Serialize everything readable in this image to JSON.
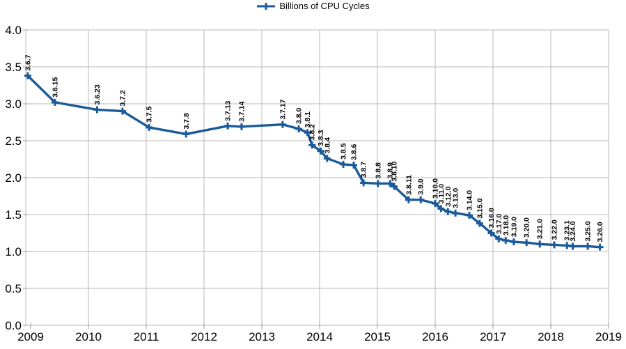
{
  "legend": {
    "label": "Billions of CPU Cycles"
  },
  "colors": {
    "series": "#1a5a9a",
    "grid": "#b9b9b9",
    "border": "#b9b9b9",
    "tick": "#9a9a9a",
    "text": "#000000"
  },
  "chart_data": {
    "type": "line",
    "legend_label": "Billions of CPU Cycles",
    "legend_position": "top-center",
    "grid": "both",
    "marker": "plus",
    "xlabel": "",
    "ylabel": "",
    "x_axis": {
      "ticks": [
        2009,
        2010,
        2011,
        2012,
        2013,
        2014,
        2015,
        2016,
        2017,
        2018,
        2019
      ]
    },
    "y_axis": {
      "min": 0,
      "max": 4,
      "ticks": [
        {
          "v": 0.0,
          "label": "0.0"
        },
        {
          "v": 0.5,
          "label": "0.5"
        },
        {
          "v": 1.0,
          "label": "1.0"
        },
        {
          "v": 1.5,
          "label": "1.5"
        },
        {
          "v": 2.0,
          "label": "2.0"
        },
        {
          "v": 2.5,
          "label": "2.5"
        },
        {
          "v": 3.0,
          "label": "3.0"
        },
        {
          "v": 3.5,
          "label": "3.5"
        },
        {
          "v": 4.0,
          "label": "4.0"
        }
      ]
    },
    "series": [
      {
        "name": "Billions of CPU Cycles",
        "color": "#1a5a9a",
        "points": [
          {
            "label": "3.6.7",
            "x": 2008.95,
            "y": 3.38
          },
          {
            "label": "3.6.15",
            "x": 2009.42,
            "y": 3.02
          },
          {
            "label": "3.6.23",
            "x": 2010.15,
            "y": 2.92
          },
          {
            "label": "3.7.2",
            "x": 2010.59,
            "y": 2.9
          },
          {
            "label": "3.7.5",
            "x": 2011.05,
            "y": 2.68
          },
          {
            "label": "3.7.8",
            "x": 2011.69,
            "y": 2.59
          },
          {
            "label": "3.7.13",
            "x": 2012.41,
            "y": 2.7
          },
          {
            "label": "3.7.14",
            "x": 2012.65,
            "y": 2.69
          },
          {
            "label": "3.7.17",
            "x": 2013.36,
            "y": 2.72
          },
          {
            "label": "3.8.0",
            "x": 2013.64,
            "y": 2.66
          },
          {
            "label": "3.8.1",
            "x": 2013.79,
            "y": 2.61
          },
          {
            "label": "3.8.2",
            "x": 2013.87,
            "y": 2.44
          },
          {
            "label": "3.8.3",
            "x": 2014.02,
            "y": 2.36
          },
          {
            "label": "3.8.4",
            "x": 2014.13,
            "y": 2.26
          },
          {
            "label": "3.8.5",
            "x": 2014.41,
            "y": 2.18
          },
          {
            "label": "3.8.6",
            "x": 2014.59,
            "y": 2.17
          },
          {
            "label": "3.8.7",
            "x": 2014.76,
            "y": 1.93
          },
          {
            "label": "3.8.8",
            "x": 2015.01,
            "y": 1.92
          },
          {
            "label": "3.8.9",
            "x": 2015.22,
            "y": 1.92
          },
          {
            "label": "3.8.10",
            "x": 2015.29,
            "y": 1.88
          },
          {
            "label": "3.8.11",
            "x": 2015.54,
            "y": 1.7
          },
          {
            "label": "3.9.0",
            "x": 2015.75,
            "y": 1.7
          },
          {
            "label": "3.10.0",
            "x": 2016.0,
            "y": 1.65
          },
          {
            "label": "3.11.0",
            "x": 2016.1,
            "y": 1.58
          },
          {
            "label": "3.12.0",
            "x": 2016.22,
            "y": 1.54
          },
          {
            "label": "3.13.0",
            "x": 2016.35,
            "y": 1.52
          },
          {
            "label": "3.14.0",
            "x": 2016.59,
            "y": 1.49
          },
          {
            "label": "3.15.0",
            "x": 2016.77,
            "y": 1.38
          },
          {
            "label": "3.16.0",
            "x": 2016.97,
            "y": 1.25
          },
          {
            "label": "3.17.0",
            "x": 2017.1,
            "y": 1.17
          },
          {
            "label": "3.18.0",
            "x": 2017.22,
            "y": 1.15
          },
          {
            "label": "3.19.0",
            "x": 2017.36,
            "y": 1.13
          },
          {
            "label": "3.20.0",
            "x": 2017.58,
            "y": 1.12
          },
          {
            "label": "3.21.0",
            "x": 2017.81,
            "y": 1.1
          },
          {
            "label": "3.22.0",
            "x": 2018.06,
            "y": 1.09
          },
          {
            "label": "3.23.1",
            "x": 2018.28,
            "y": 1.08
          },
          {
            "label": "3.24.0",
            "x": 2018.38,
            "y": 1.07
          },
          {
            "label": "3.25.0",
            "x": 2018.64,
            "y": 1.07
          },
          {
            "label": "3.26.0",
            "x": 2018.85,
            "y": 1.06
          }
        ]
      }
    ]
  }
}
